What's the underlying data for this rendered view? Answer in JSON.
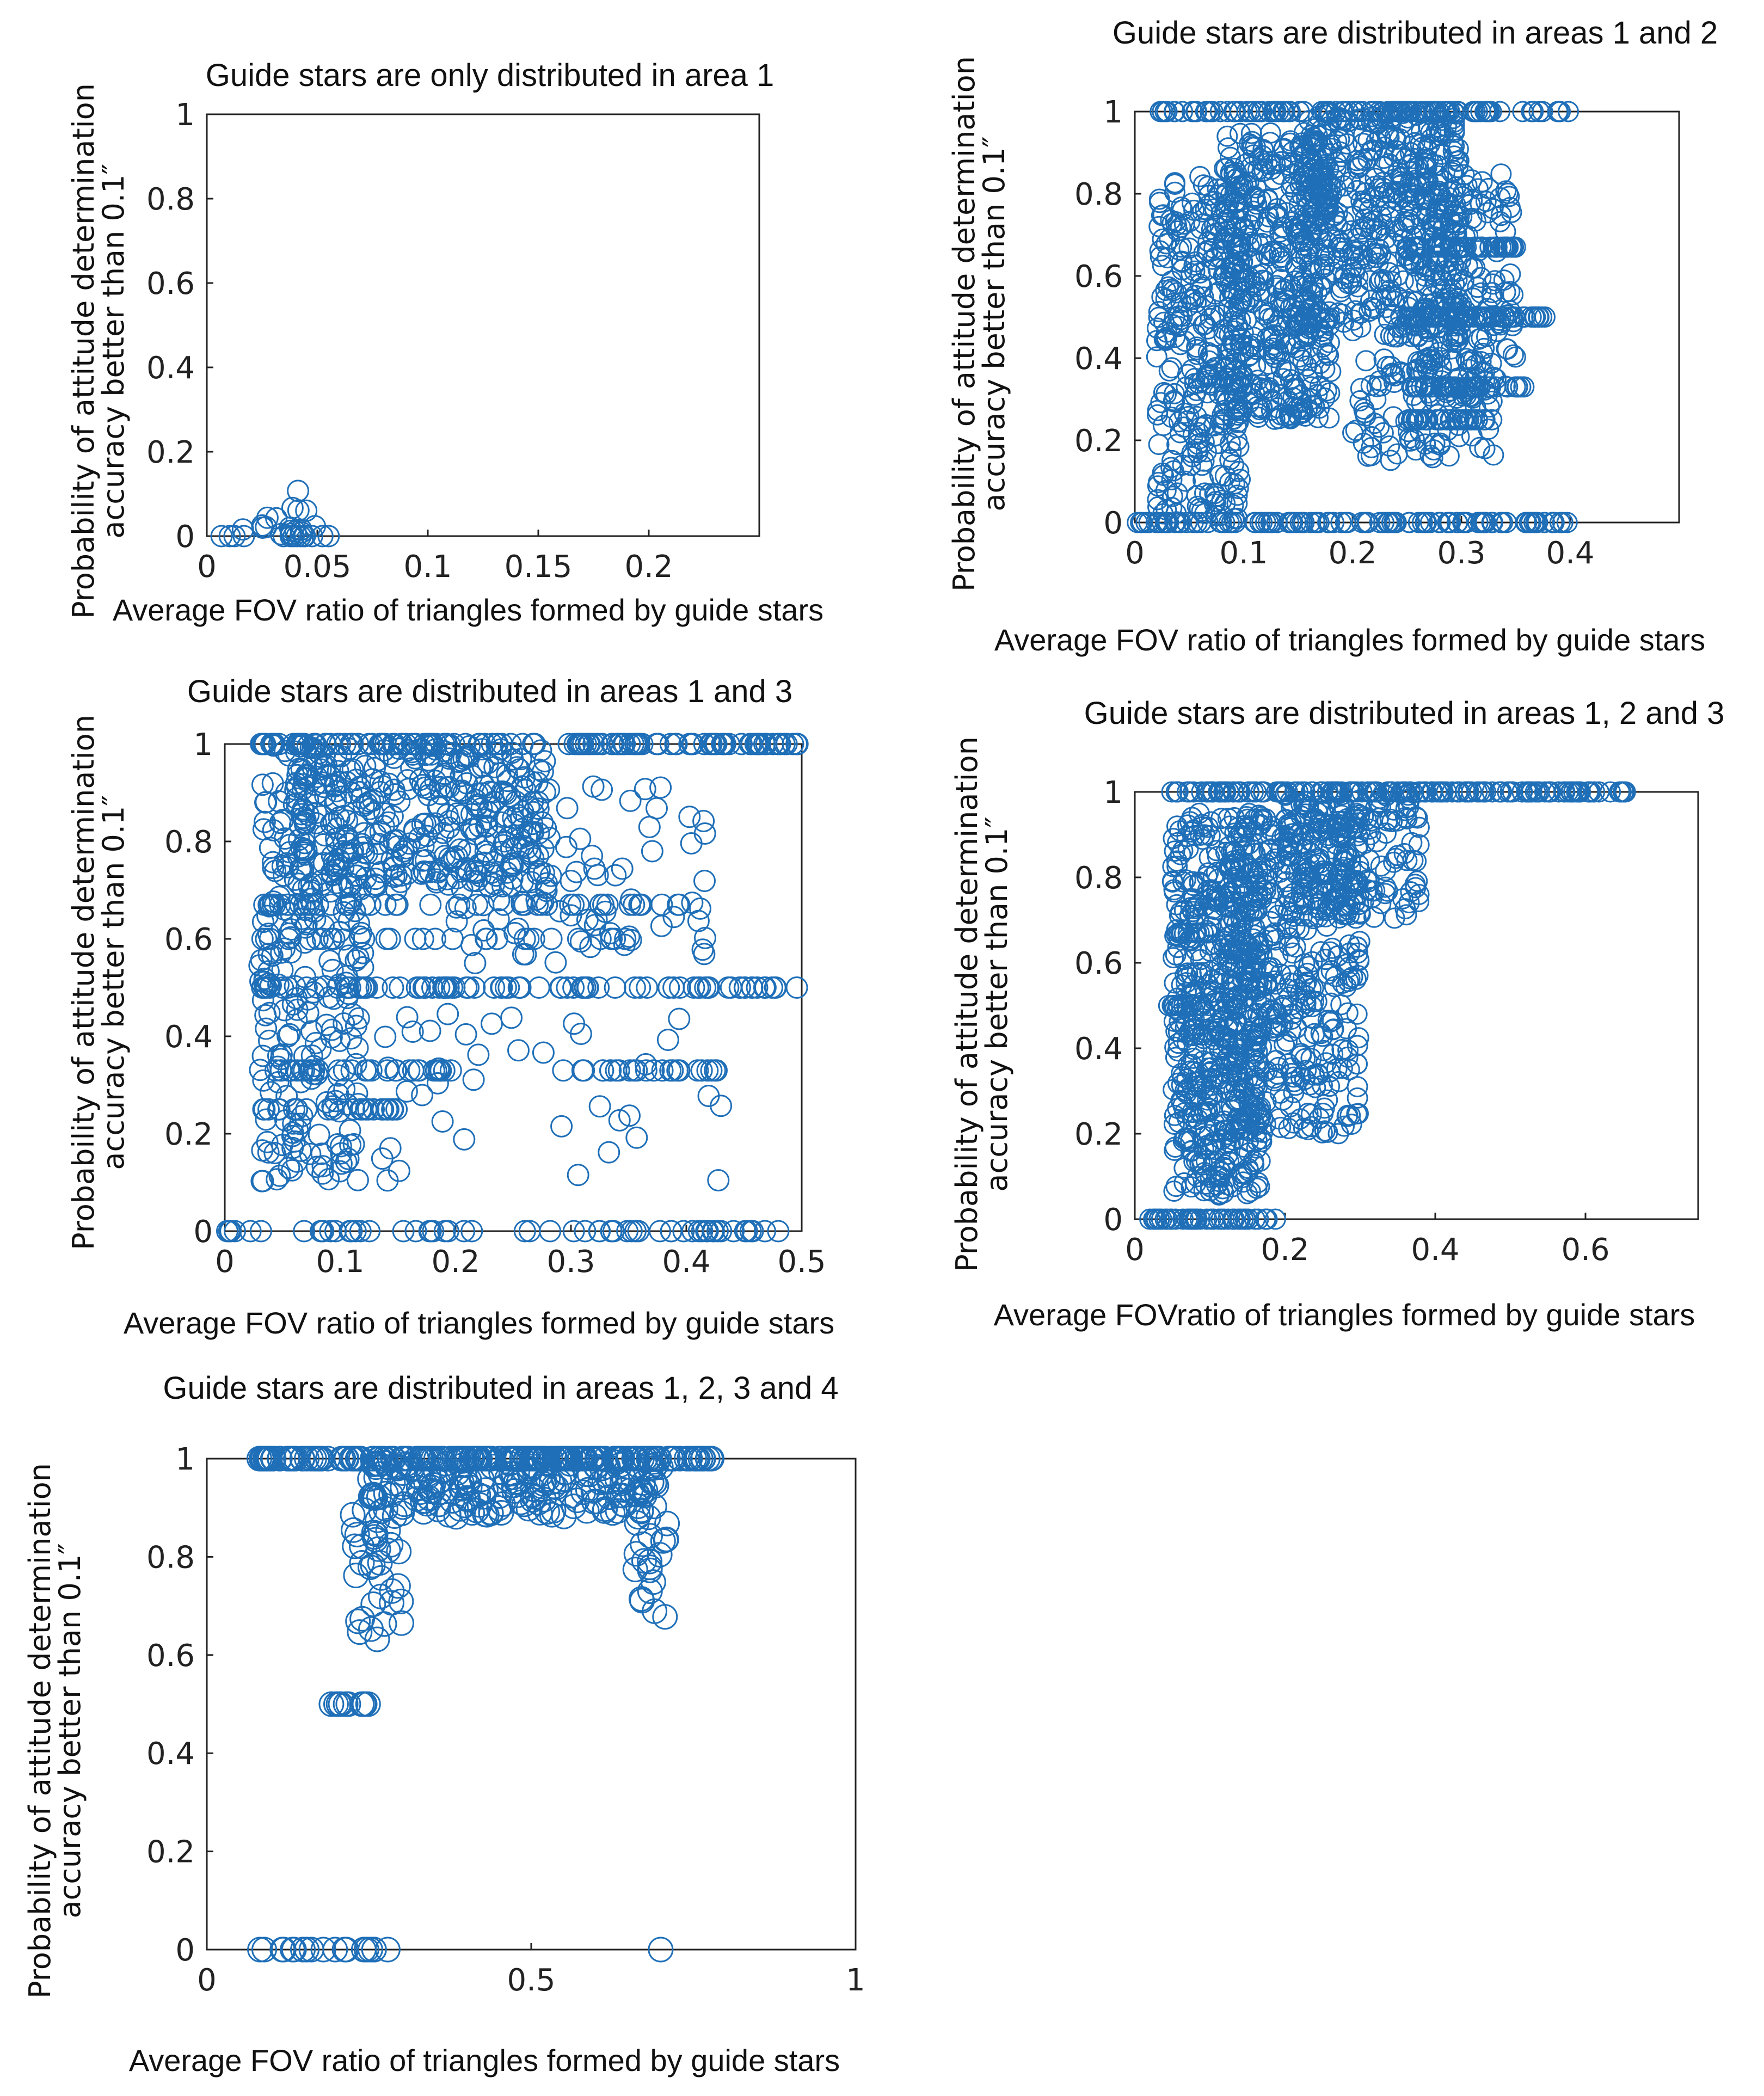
{
  "colors": {
    "marker": "#1f6fb8",
    "axis": "#222222",
    "text": "#111111"
  },
  "chart_data": [
    {
      "type": "scatter",
      "title": "Guide stars are only distributed in area 1",
      "xlabel": "Average FOV ratio of triangles formed by guide stars",
      "ylabel_line1": "Probability  of  attitude  determination",
      "ylabel_line2": "accuracy  better  than  0.1″",
      "xlim": [
        0,
        0.25
      ],
      "ylim": [
        0,
        1
      ],
      "xticks": [
        0,
        0.05,
        0.1,
        0.15,
        0.2
      ],
      "xtick_labels": [
        "0",
        "0.05",
        "0.1",
        "0.15",
        "0.2"
      ],
      "yticks": [
        0,
        0.2,
        0.4,
        0.6,
        0.8,
        1
      ],
      "ytick_labels": [
        "0",
        "0.2",
        "0.4",
        "0.6",
        "0.8",
        "1"
      ],
      "regions": [
        {
          "x": [
            0.0,
            0.06
          ],
          "y": [
            0.0,
            0.0
          ],
          "n": 14
        },
        {
          "x": [
            0.01,
            0.05
          ],
          "y": [
            0.0,
            0.05
          ],
          "n": 14
        },
        {
          "x": [
            0.035,
            0.05
          ],
          "y": [
            0.06,
            0.11
          ],
          "n": 4
        }
      ]
    },
    {
      "type": "scatter",
      "title": "Guide stars are distributed in areas 1 and 2",
      "xlabel": "Average FOV ratio of triangles formed by guide stars",
      "ylabel_line1": "Probability  of  attitude  determination",
      "ylabel_line2": "accuracy  better  than  0.1″",
      "xlim": [
        0,
        0.5
      ],
      "ylim": [
        0,
        1
      ],
      "xticks": [
        0,
        0.1,
        0.2,
        0.3,
        0.4
      ],
      "xtick_labels": [
        "0",
        "0.1",
        "0.2",
        "0.3",
        "0.4"
      ],
      "yticks": [
        0,
        0.2,
        0.4,
        0.6,
        0.8,
        1
      ],
      "ytick_labels": [
        "0",
        "0.2",
        "0.4",
        "0.6",
        "0.8",
        "1"
      ],
      "regions": [
        {
          "x": [
            0.02,
            0.4
          ],
          "y": [
            1.0,
            1.0
          ],
          "n": 120
        },
        {
          "x": [
            0.0,
            0.4
          ],
          "y": [
            0.0,
            0.0
          ],
          "n": 110
        },
        {
          "x": [
            0.02,
            0.1
          ],
          "y": [
            0.0,
            0.85
          ],
          "n": 300
        },
        {
          "x": [
            0.08,
            0.18
          ],
          "y": [
            0.25,
            0.95
          ],
          "n": 450
        },
        {
          "x": [
            0.15,
            0.3
          ],
          "y": [
            0.45,
            1.0
          ],
          "n": 450
        },
        {
          "x": [
            0.25,
            0.35
          ],
          "y": [
            0.3,
            0.85
          ],
          "n": 200
        },
        {
          "x": [
            0.2,
            0.33
          ],
          "y": [
            0.15,
            0.4
          ],
          "n": 90
        },
        {
          "x": [
            0.25,
            0.35
          ],
          "y": [
            0.67,
            0.67
          ],
          "n": 50
        },
        {
          "x": [
            0.25,
            0.38
          ],
          "y": [
            0.5,
            0.5
          ],
          "n": 50
        },
        {
          "x": [
            0.25,
            0.36
          ],
          "y": [
            0.33,
            0.33
          ],
          "n": 40
        },
        {
          "x": [
            0.25,
            0.33
          ],
          "y": [
            0.25,
            0.25
          ],
          "n": 40
        }
      ]
    },
    {
      "type": "scatter",
      "title": "Guide stars are distributed in areas 1 and 3",
      "xlabel": "Average FOV ratio of triangles formed by guide stars",
      "ylabel_line1": "Probability  of  attitude  determination",
      "ylabel_line2": "accuracy  better  than  0.1″",
      "xlim": [
        0,
        0.5
      ],
      "ylim": [
        0,
        1
      ],
      "xticks": [
        0,
        0.1,
        0.2,
        0.3,
        0.4,
        0.5
      ],
      "xtick_labels": [
        "0",
        "0.1",
        "0.2",
        "0.3",
        "0.4",
        "0.5"
      ],
      "yticks": [
        0,
        0.2,
        0.4,
        0.6,
        0.8,
        1
      ],
      "ytick_labels": [
        "0",
        "0.2",
        "0.4",
        "0.6",
        "0.8",
        "1"
      ],
      "regions": [
        {
          "x": [
            0.03,
            0.5
          ],
          "y": [
            1.0,
            1.0
          ],
          "n": 140
        },
        {
          "x": [
            0.0,
            0.48
          ],
          "y": [
            0.0,
            0.0
          ],
          "n": 60
        },
        {
          "x": [
            0.03,
            0.12
          ],
          "y": [
            0.1,
            1.0
          ],
          "n": 240
        },
        {
          "x": [
            0.06,
            0.28
          ],
          "y": [
            0.7,
            1.0
          ],
          "n": 320
        },
        {
          "x": [
            0.2,
            0.42
          ],
          "y": [
            0.55,
            0.92
          ],
          "n": 90
        },
        {
          "x": [
            0.03,
            0.5
          ],
          "y": [
            0.5,
            0.5
          ],
          "n": 90
        },
        {
          "x": [
            0.03,
            0.2
          ],
          "y": [
            0.33,
            0.33
          ],
          "n": 35
        },
        {
          "x": [
            0.28,
            0.43
          ],
          "y": [
            0.33,
            0.33
          ],
          "n": 25
        },
        {
          "x": [
            0.03,
            0.15
          ],
          "y": [
            0.25,
            0.25
          ],
          "n": 25
        },
        {
          "x": [
            0.03,
            0.42
          ],
          "y": [
            0.67,
            0.67
          ],
          "n": 45
        },
        {
          "x": [
            0.03,
            0.35
          ],
          "y": [
            0.6,
            0.6
          ],
          "n": 30
        },
        {
          "x": [
            0.1,
            0.45
          ],
          "y": [
            0.1,
            0.45
          ],
          "n": 40
        }
      ]
    },
    {
      "type": "scatter",
      "title": "Guide stars are distributed in areas 1, 2 and 3",
      "xlabel": "Average FOVratio of triangles formed by guide stars",
      "ylabel_line1": "Probability  of  attitude  determination",
      "ylabel_line2": "accuracy  better  than  0.1″",
      "xlim": [
        0,
        0.75
      ],
      "ylim": [
        0,
        1
      ],
      "xticks": [
        0,
        0.2,
        0.4,
        0.6
      ],
      "xtick_labels": [
        "0",
        "0.2",
        "0.4",
        "0.6"
      ],
      "yticks": [
        0,
        0.2,
        0.4,
        0.6,
        0.8,
        1
      ],
      "ytick_labels": [
        "0",
        "0.2",
        "0.4",
        "0.6",
        "0.8",
        "1"
      ],
      "regions": [
        {
          "x": [
            0.04,
            0.66
          ],
          "y": [
            1.0,
            1.0
          ],
          "n": 160
        },
        {
          "x": [
            0.02,
            0.19
          ],
          "y": [
            0.0,
            0.0
          ],
          "n": 50
        },
        {
          "x": [
            0.05,
            0.17
          ],
          "y": [
            0.05,
            0.95
          ],
          "n": 520
        },
        {
          "x": [
            0.12,
            0.3
          ],
          "y": [
            0.2,
            0.95
          ],
          "n": 420
        },
        {
          "x": [
            0.2,
            0.38
          ],
          "y": [
            0.7,
            1.0
          ],
          "n": 200
        },
        {
          "x": [
            0.04,
            0.1
          ],
          "y": [
            0.5,
            0.5
          ],
          "n": 14
        },
        {
          "x": [
            0.05,
            0.1
          ],
          "y": [
            0.67,
            0.67
          ],
          "n": 10
        }
      ]
    },
    {
      "type": "scatter",
      "title": "Guide stars are distributed in areas 1, 2, 3 and 4",
      "xlabel": "Average FOV ratio of triangles formed by guide stars",
      "ylabel_line1": "Probability  of  attitude  determination",
      "ylabel_line2": "accuracy  better  than  0.1″",
      "xlim": [
        0,
        1
      ],
      "ylim": [
        0,
        1
      ],
      "xticks": [
        0,
        0.5,
        1
      ],
      "xtick_labels": [
        "0",
        "0.5",
        "1"
      ],
      "yticks": [
        0,
        0.2,
        0.4,
        0.6,
        0.8,
        1
      ],
      "ytick_labels": [
        "0",
        "0.2",
        "0.4",
        "0.6",
        "0.8",
        "1"
      ],
      "regions": [
        {
          "x": [
            0.08,
            0.78
          ],
          "y": [
            1.0,
            1.0
          ],
          "n": 200
        },
        {
          "x": [
            0.25,
            0.7
          ],
          "y": [
            0.88,
            1.0
          ],
          "n": 200
        },
        {
          "x": [
            0.22,
            0.3
          ],
          "y": [
            0.62,
            0.9
          ],
          "n": 35
        },
        {
          "x": [
            0.66,
            0.71
          ],
          "y": [
            0.66,
            0.9
          ],
          "n": 20
        },
        {
          "x": [
            0.18,
            0.26
          ],
          "y": [
            0.5,
            0.5
          ],
          "n": 10
        },
        {
          "x": [
            0.08,
            0.28
          ],
          "y": [
            0.0,
            0.0
          ],
          "n": 20
        },
        {
          "x": [
            0.69,
            0.7
          ],
          "y": [
            0.0,
            0.0
          ],
          "n": 1
        }
      ]
    }
  ]
}
